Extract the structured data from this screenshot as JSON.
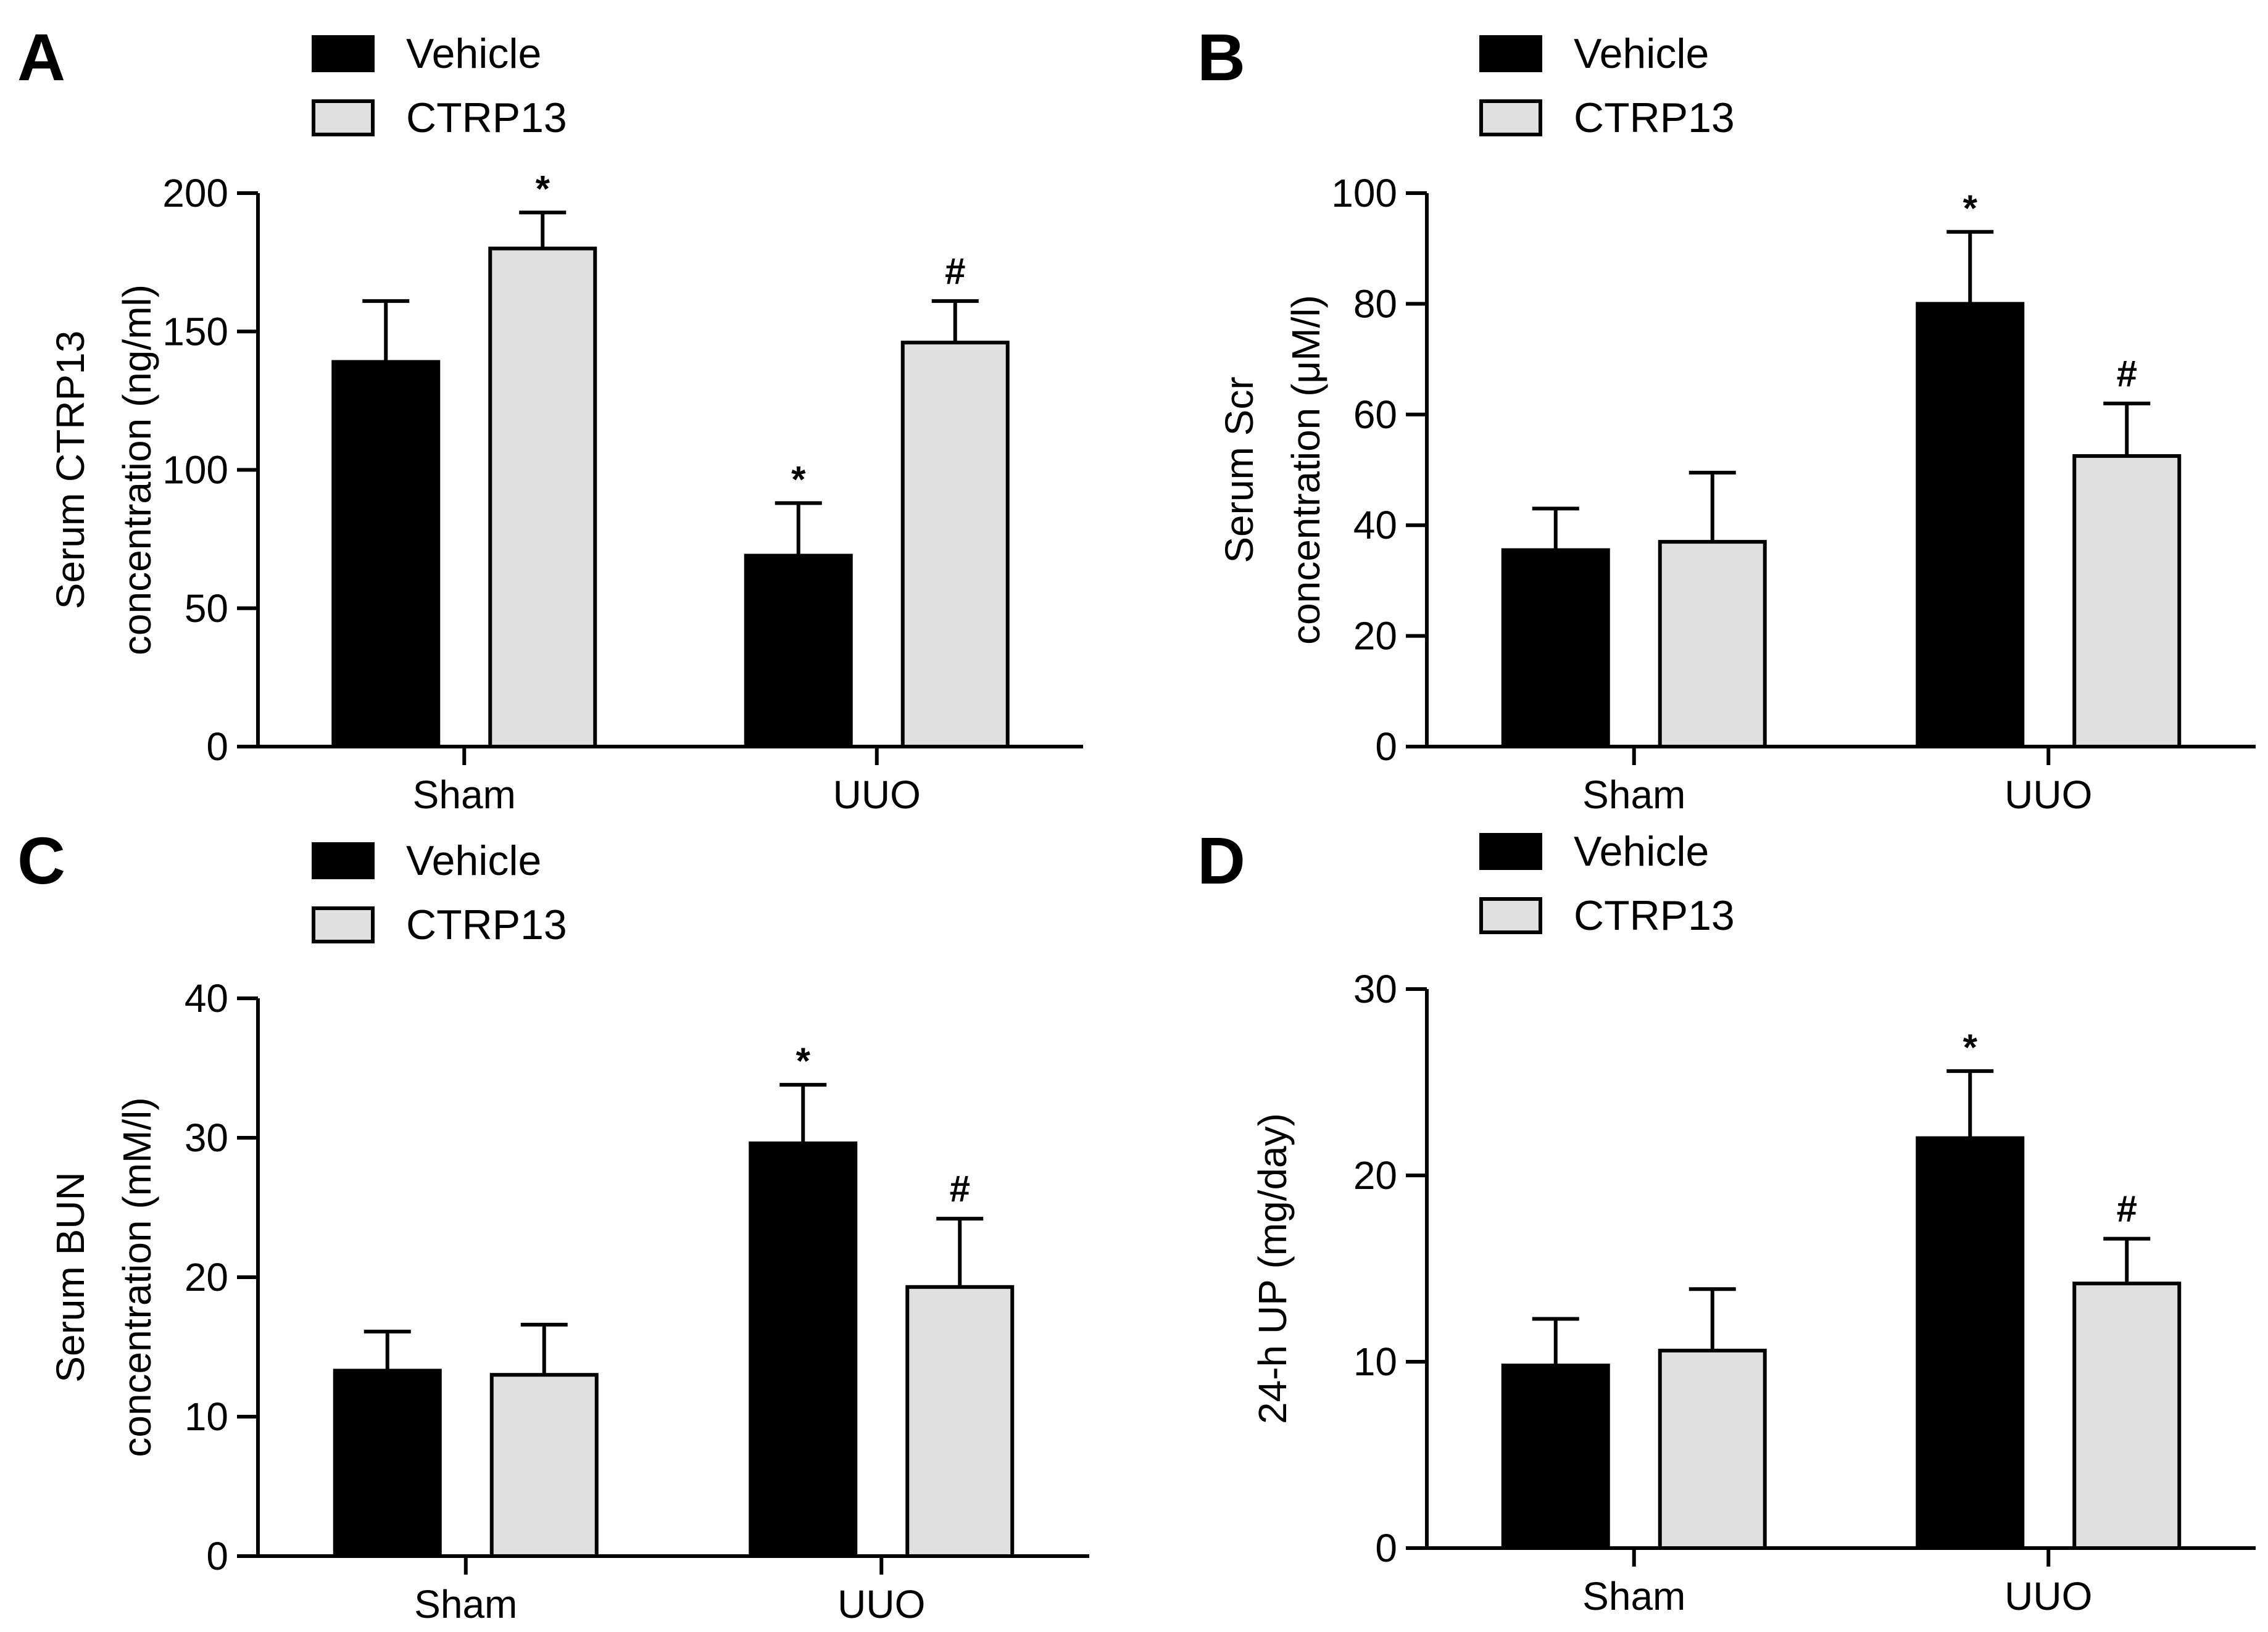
{
  "colors": {
    "vehicle": "#000000",
    "ctrp13": "#e0e0e0",
    "axis": "#000000"
  },
  "legend": {
    "items": [
      "Vehicle",
      "CTRP13"
    ]
  },
  "chart_data": [
    {
      "panel": "A",
      "type": "bar",
      "categories": [
        "Sham",
        "UUO"
      ],
      "ylabel": [
        "Serum CTRP13",
        "concentration (ng/ml)"
      ],
      "ylim": [
        0,
        200
      ],
      "yticks": [
        "0",
        "50",
        "100",
        "150",
        "200"
      ],
      "series": [
        {
          "name": "Vehicle",
          "values": [
            139,
            69
          ],
          "errors": [
            22,
            19
          ],
          "annotations": [
            "",
            "*"
          ]
        },
        {
          "name": "CTRP13",
          "values": [
            180,
            146
          ],
          "errors": [
            13,
            15
          ],
          "annotations": [
            "*",
            "#"
          ]
        }
      ]
    },
    {
      "panel": "B",
      "type": "bar",
      "categories": [
        "Sham",
        "UUO"
      ],
      "ylabel": [
        "Serum Scr",
        "concentration (μM/l)"
      ],
      "ylim": [
        0,
        100
      ],
      "yticks": [
        "0",
        "20",
        "40",
        "60",
        "80",
        "100"
      ],
      "series": [
        {
          "name": "Vehicle",
          "values": [
            35.5,
            80
          ],
          "errors": [
            7.5,
            13
          ],
          "annotations": [
            "",
            "*"
          ]
        },
        {
          "name": "CTRP13",
          "values": [
            37,
            52.5
          ],
          "errors": [
            12.5,
            9.5
          ],
          "annotations": [
            "",
            "#"
          ]
        }
      ]
    },
    {
      "panel": "C",
      "type": "bar",
      "categories": [
        "Sham",
        "UUO"
      ],
      "ylabel": [
        "Serum BUN",
        "concentration (mM/l)"
      ],
      "ylim": [
        0,
        40
      ],
      "yticks": [
        "0",
        "10",
        "20",
        "30",
        "40"
      ],
      "series": [
        {
          "name": "Vehicle",
          "values": [
            13.3,
            29.6
          ],
          "errors": [
            2.8,
            4.2
          ],
          "annotations": [
            "",
            "*"
          ]
        },
        {
          "name": "CTRP13",
          "values": [
            13,
            19.3
          ],
          "errors": [
            3.6,
            4.9
          ],
          "annotations": [
            "",
            "#"
          ]
        }
      ]
    },
    {
      "panel": "D",
      "type": "bar",
      "categories": [
        "Sham",
        "UUO"
      ],
      "ylabel": [
        "24-h UP (mg/day)"
      ],
      "ylim": [
        0,
        30
      ],
      "yticks": [
        "0",
        "10",
        "20",
        "30"
      ],
      "series": [
        {
          "name": "Vehicle",
          "values": [
            9.8,
            22
          ],
          "errors": [
            2.5,
            3.6
          ],
          "annotations": [
            "",
            "*"
          ]
        },
        {
          "name": "CTRP13",
          "values": [
            10.6,
            14.2
          ],
          "errors": [
            3.3,
            2.4
          ],
          "annotations": [
            "",
            "#"
          ]
        }
      ]
    }
  ]
}
